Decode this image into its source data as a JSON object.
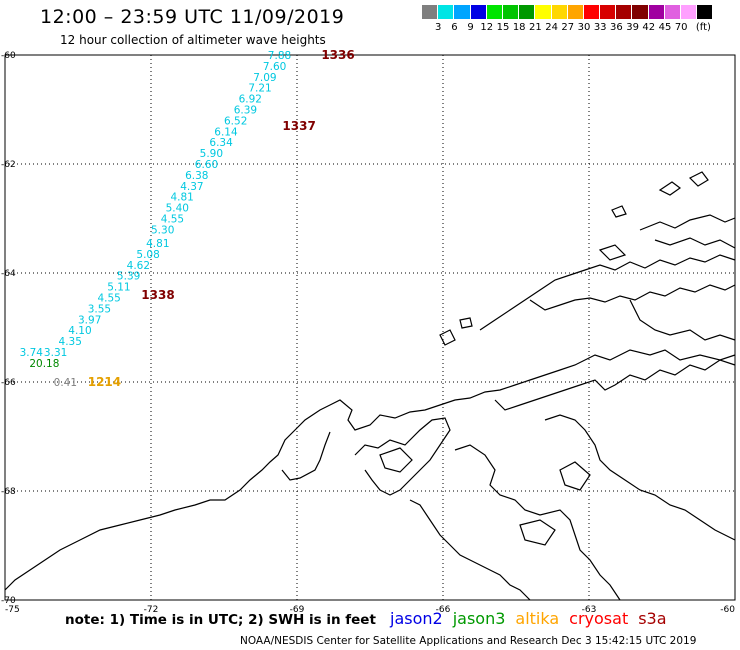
{
  "header": {
    "title": "12:00 – 23:59 UTC 11/09/2019",
    "subtitle": "12 hour collection of altimeter wave heights"
  },
  "colorbar": {
    "colors": [
      "#7f7f7f",
      "#00e5e5",
      "#00a5ff",
      "#0000e5",
      "#00e500",
      "#00c400",
      "#009900",
      "#ffff00",
      "#ffd700",
      "#ffa500",
      "#ff0000",
      "#d80000",
      "#a50000",
      "#800000",
      "#a000a0",
      "#e060e0",
      "#ffa0ff",
      "#000000"
    ],
    "labels": [
      "3",
      "6",
      "9",
      "12",
      "15",
      "18",
      "21",
      "24",
      "27",
      "30",
      "33",
      "36",
      "39",
      "42",
      "45",
      "70",
      "(ft)"
    ]
  },
  "axes": {
    "lat_labels": [
      "-60",
      "-62",
      "-64",
      "-66",
      "-68",
      "-70"
    ],
    "lon_labels": [
      "-75",
      "-72",
      "-69",
      "-66",
      "-63",
      "-60"
    ]
  },
  "observations": [
    {
      "v": "7.88",
      "lon": -69.6,
      "lat": -60.0,
      "c": "#00c8e0"
    },
    {
      "v": "7.60",
      "lon": -69.7,
      "lat": -60.2,
      "c": "#00c8e0"
    },
    {
      "v": "7.09",
      "lon": -69.9,
      "lat": -60.4,
      "c": "#00c8e0"
    },
    {
      "v": "7.21",
      "lon": -70.0,
      "lat": -60.6,
      "c": "#00c8e0"
    },
    {
      "v": "6.92",
      "lon": -70.2,
      "lat": -60.8,
      "c": "#00c8e0"
    },
    {
      "v": "6.39",
      "lon": -70.3,
      "lat": -61.0,
      "c": "#00c8e0"
    },
    {
      "v": "6.52",
      "lon": -70.5,
      "lat": -61.2,
      "c": "#00c8e0"
    },
    {
      "v": "6.14",
      "lon": -70.7,
      "lat": -61.4,
      "c": "#00c8e0"
    },
    {
      "v": "6.34",
      "lon": -70.8,
      "lat": -61.6,
      "c": "#00c8e0"
    },
    {
      "v": "5.90",
      "lon": -71.0,
      "lat": -61.8,
      "c": "#00c8e0"
    },
    {
      "v": "6.60",
      "lon": -71.1,
      "lat": -62.0,
      "c": "#00c8e0"
    },
    {
      "v": "6.38",
      "lon": -71.3,
      "lat": -62.2,
      "c": "#00c8e0"
    },
    {
      "v": "4.37",
      "lon": -71.4,
      "lat": -62.4,
      "c": "#00c8e0"
    },
    {
      "v": "4.81",
      "lon": -71.6,
      "lat": -62.6,
      "c": "#00c8e0"
    },
    {
      "v": "5.40",
      "lon": -71.7,
      "lat": -62.8,
      "c": "#00c8e0"
    },
    {
      "v": "4.55",
      "lon": -71.8,
      "lat": -63.0,
      "c": "#00c8e0"
    },
    {
      "v": "5.30",
      "lon": -72.0,
      "lat": -63.2,
      "c": "#00c8e0"
    },
    {
      "v": "4.81",
      "lon": -72.1,
      "lat": -63.45,
      "c": "#00c8e0"
    },
    {
      "v": "5.08",
      "lon": -72.3,
      "lat": -63.65,
      "c": "#00c8e0"
    },
    {
      "v": "4.62",
      "lon": -72.5,
      "lat": -63.85,
      "c": "#00c8e0"
    },
    {
      "v": "5.39",
      "lon": -72.7,
      "lat": -64.05,
      "c": "#00c8e0"
    },
    {
      "v": "5.11",
      "lon": -72.9,
      "lat": -64.25,
      "c": "#00c8e0"
    },
    {
      "v": "4.55",
      "lon": -73.1,
      "lat": -64.45,
      "c": "#00c8e0"
    },
    {
      "v": "3.55",
      "lon": -73.3,
      "lat": -64.65,
      "c": "#00c8e0"
    },
    {
      "v": "3.97",
      "lon": -73.5,
      "lat": -64.85,
      "c": "#00c8e0"
    },
    {
      "v": "4.10",
      "lon": -73.7,
      "lat": -65.05,
      "c": "#00c8e0"
    },
    {
      "v": "4.35",
      "lon": -73.9,
      "lat": -65.25,
      "c": "#00c8e0"
    },
    {
      "v": "3.31",
      "lon": -74.2,
      "lat": -65.45,
      "c": "#00c8e0"
    },
    {
      "v": "3.74",
      "lon": -74.7,
      "lat": -65.45,
      "c": "#00c8e0"
    },
    {
      "v": "20.18",
      "lon": -74.5,
      "lat": -65.65,
      "c": "#008800"
    },
    {
      "v": "0.41",
      "lon": -74.0,
      "lat": -66.0,
      "c": "#808080"
    }
  ],
  "passes": [
    {
      "label": "1336",
      "lon": -68.5,
      "lat": -60.0,
      "c": "#800000"
    },
    {
      "label": "1337",
      "lon": -69.3,
      "lat": -61.3,
      "c": "#800000"
    },
    {
      "label": "1338",
      "lon": -72.2,
      "lat": -64.4,
      "c": "#800000"
    },
    {
      "label": "1214",
      "lon": -73.3,
      "lat": -66.0,
      "c": "#e5a000"
    }
  ],
  "footer": {
    "note": "note: 1) Time is in UTC; 2) SWH is in feet",
    "satellites": [
      {
        "name": "jason2",
        "color": "#0000e5"
      },
      {
        "name": "jason3",
        "color": "#009900"
      },
      {
        "name": "altika",
        "color": "#ffa500"
      },
      {
        "name": "cryosat",
        "color": "#ff0000"
      },
      {
        "name": "s3a",
        "color": "#a50000"
      }
    ],
    "credit": "NOAA/NESDIS Center for Satellite Applications and Research   Dec  3 15:42:15 UTC 2019"
  }
}
